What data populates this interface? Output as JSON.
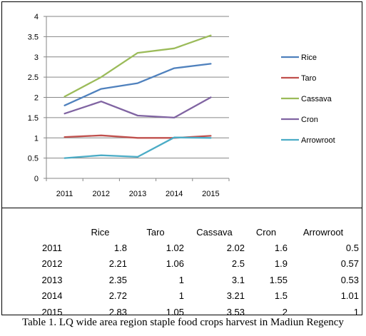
{
  "chart_data": {
    "type": "line",
    "categories": [
      "2011",
      "2012",
      "2013",
      "2014",
      "2015"
    ],
    "series": [
      {
        "name": "Rice",
        "color": "#4F81BD",
        "values": [
          1.8,
          2.21,
          2.35,
          2.72,
          2.83
        ]
      },
      {
        "name": "Taro",
        "color": "#C0504D",
        "values": [
          1.02,
          1.06,
          1,
          1,
          1.05
        ]
      },
      {
        "name": "Cassava",
        "color": "#9BBB59",
        "values": [
          2.02,
          2.5,
          3.1,
          3.21,
          3.53
        ]
      },
      {
        "name": "Cron",
        "color": "#8064A2",
        "values": [
          1.6,
          1.9,
          1.55,
          1.5,
          2
        ]
      },
      {
        "name": "Arrowroot",
        "color": "#4BACC6",
        "values": [
          0.5,
          0.57,
          0.53,
          1.01,
          1
        ]
      }
    ],
    "ylim": [
      0,
      4
    ],
    "yticks": [
      "0",
      "0.5",
      "1",
      "1.5",
      "2",
      "2.5",
      "3",
      "3.5",
      "4"
    ],
    "grid": true,
    "legend": "right",
    "title": "",
    "xlabel": "",
    "ylabel": ""
  },
  "table": {
    "headers": [
      "Rice",
      "Taro",
      "Cassava",
      "Cron",
      "Arrowroot"
    ],
    "rows": [
      {
        "year": "2011",
        "cells": [
          "1.8",
          "1.02",
          "2.02",
          "1.6",
          "0.5"
        ]
      },
      {
        "year": "2012",
        "cells": [
          "2.21",
          "1.06",
          "2.5",
          "1.9",
          "0.57"
        ]
      },
      {
        "year": "2013",
        "cells": [
          "2.35",
          "1",
          "3.1",
          "1.55",
          "0.53"
        ]
      },
      {
        "year": "2014",
        "cells": [
          "2.72",
          "1",
          "3.21",
          "1.5",
          "1.01"
        ]
      },
      {
        "year": "2015",
        "cells": [
          "2.83",
          "1.05",
          "3.53",
          "2",
          "1"
        ]
      }
    ]
  },
  "caption": "Table 1. LQ wide area region staple food crops harvest in Madiun Regency"
}
